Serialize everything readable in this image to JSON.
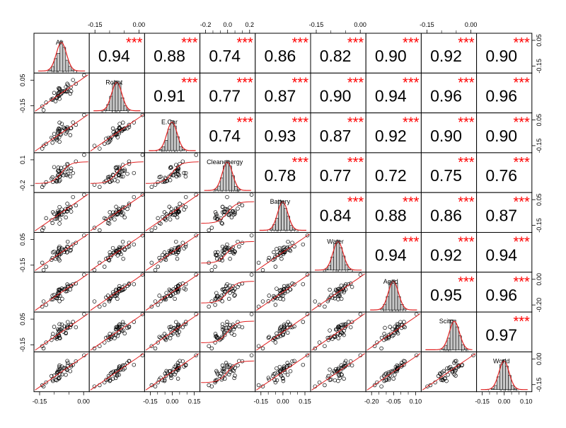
{
  "chart_data": {
    "type": "scatter-matrix",
    "title": "",
    "variables": [
      "AI",
      "Robot",
      "E.Car",
      "Cleanenergy",
      "Battery",
      "Water",
      "Aged",
      "Scitc",
      "World"
    ],
    "correlations": [
      [
        1.0,
        0.94,
        0.88,
        0.74,
        0.86,
        0.82,
        0.9,
        0.92,
        0.9
      ],
      [
        0.94,
        1.0,
        0.91,
        0.77,
        0.87,
        0.9,
        0.94,
        0.96,
        0.96
      ],
      [
        0.88,
        0.91,
        1.0,
        0.74,
        0.93,
        0.87,
        0.92,
        0.9,
        0.9
      ],
      [
        0.74,
        0.77,
        0.74,
        1.0,
        0.78,
        0.77,
        0.72,
        0.75,
        0.76
      ],
      [
        0.86,
        0.87,
        0.93,
        0.78,
        1.0,
        0.84,
        0.88,
        0.86,
        0.87
      ],
      [
        0.82,
        0.9,
        0.87,
        0.77,
        0.84,
        1.0,
        0.94,
        0.92,
        0.94
      ],
      [
        0.9,
        0.94,
        0.92,
        0.72,
        0.88,
        0.94,
        1.0,
        0.95,
        0.96
      ],
      [
        0.92,
        0.96,
        0.9,
        0.75,
        0.86,
        0.92,
        0.95,
        1.0,
        0.97
      ],
      [
        0.9,
        0.96,
        0.9,
        0.76,
        0.87,
        0.94,
        0.96,
        0.97,
        1.0
      ]
    ],
    "significance": [
      [
        null,
        "***",
        "***",
        "***",
        "***",
        "***",
        "***",
        "***",
        "***"
      ],
      [
        null,
        null,
        "***",
        "***",
        "***",
        "***",
        "***",
        "***",
        "***"
      ],
      [
        null,
        null,
        null,
        "***",
        "***",
        "***",
        "***",
        "***",
        "***"
      ],
      [
        null,
        null,
        null,
        null,
        "***",
        "***",
        "",
        "***",
        "***"
      ],
      [
        null,
        null,
        null,
        null,
        null,
        "***",
        "***",
        "***",
        "***"
      ],
      [
        null,
        null,
        null,
        null,
        null,
        null,
        "***",
        "***",
        "***"
      ],
      [
        null,
        null,
        null,
        null,
        null,
        null,
        null,
        "***",
        "***"
      ],
      [
        null,
        null,
        null,
        null,
        null,
        null,
        null,
        null,
        "***"
      ],
      [
        null,
        null,
        null,
        null,
        null,
        null,
        null,
        null,
        null
      ]
    ],
    "axes": {
      "top": [
        {
          "column": 1,
          "ticks": [
            "-0.15",
            "0.00"
          ]
        },
        {
          "column": 3,
          "ticks": [
            "-0.2",
            "0.0",
            "0.2"
          ]
        },
        {
          "column": 5,
          "ticks": [
            "-0.15",
            "0.00"
          ]
        },
        {
          "column": 7,
          "ticks": [
            "-0.15",
            "0.00"
          ]
        }
      ],
      "bottom": [
        {
          "column": 0,
          "ticks": [
            "-0.15",
            "0.00"
          ]
        },
        {
          "column": 2,
          "ticks": [
            "-0.15",
            "0.00",
            "0.15"
          ]
        },
        {
          "column": 4,
          "ticks": [
            "-0.15",
            "0.00",
            "0.15"
          ]
        },
        {
          "column": 6,
          "ticks": [
            "-0.20",
            "-0.05",
            "0.10"
          ]
        },
        {
          "column": 8,
          "ticks": [
            "-0.15",
            "0.00",
            "0.10"
          ]
        }
      ],
      "left": [
        {
          "row": 1,
          "ticks": [
            "0.05",
            "-0.15"
          ]
        },
        {
          "row": 3,
          "ticks": [
            "0.1",
            "-0.2"
          ]
        },
        {
          "row": 5,
          "ticks": [
            "0.05",
            "-0.15"
          ]
        },
        {
          "row": 7,
          "ticks": [
            "0.05",
            "-0.15"
          ]
        }
      ],
      "right": [
        {
          "row": 0,
          "ticks": [
            "0.05",
            "-0.15"
          ]
        },
        {
          "row": 2,
          "ticks": [
            "0.05",
            "-0.15"
          ]
        },
        {
          "row": 4,
          "ticks": [
            "0.05",
            "-0.15"
          ]
        },
        {
          "row": 6,
          "ticks": [
            "0.00",
            "-0.20"
          ]
        },
        {
          "row": 8,
          "ticks": [
            "0.00",
            "-0.15"
          ]
        }
      ]
    },
    "colors": {
      "star": "#ff0000",
      "fit_line": "#e02020",
      "density_line": "#e02020",
      "histogram_fill": "#c8c8c8",
      "point_stroke": "#000000"
    }
  }
}
